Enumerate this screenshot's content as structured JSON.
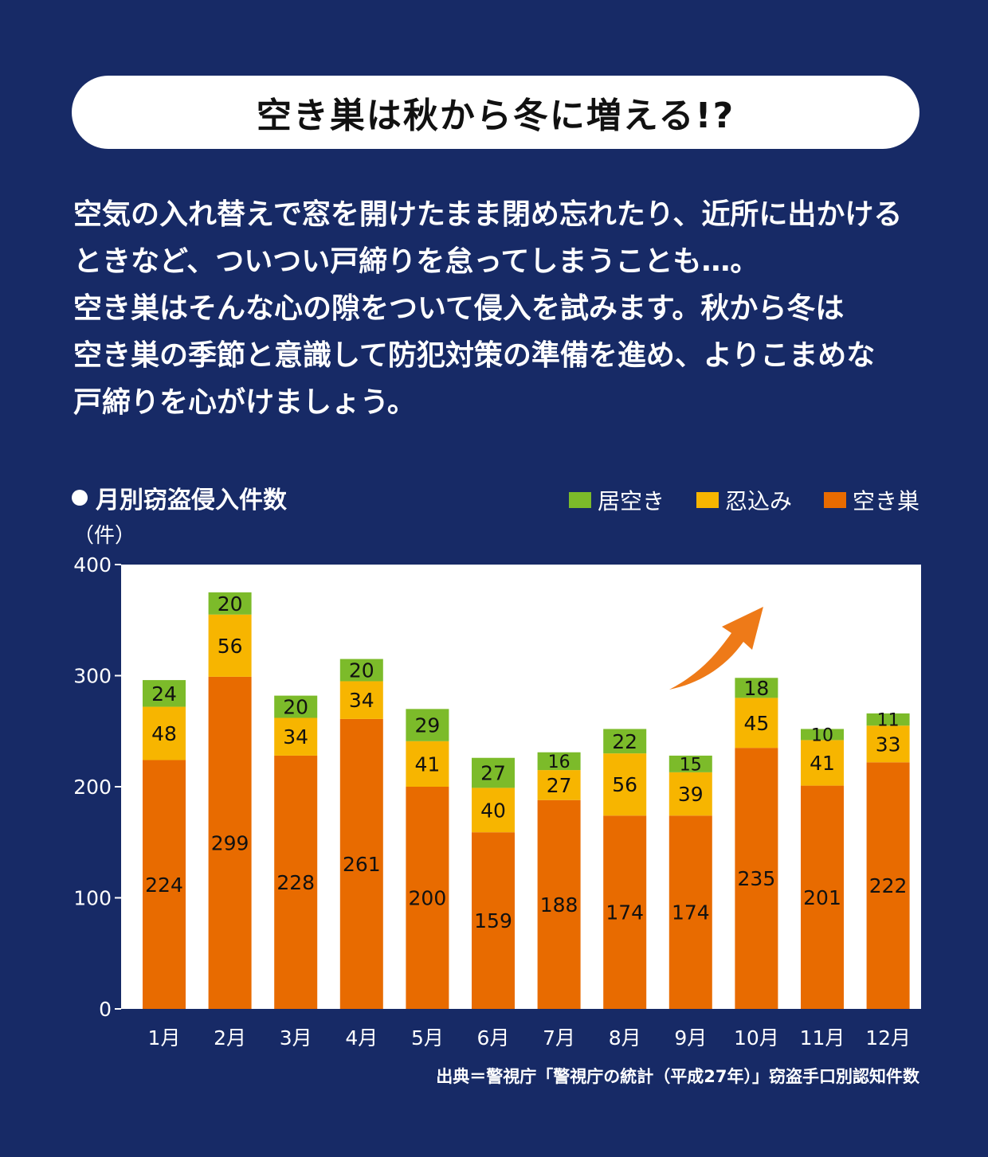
{
  "title": "空き巣は秋から冬に増える!?",
  "paragraph_lines": [
    "空気の入れ替えで窓を開けたまま閉め忘れたり、近所に出かける",
    "ときなど、ついつい戸締りを怠ってしまうことも…。",
    "空き巣はそんな心の隙をついて侵入を試みます。秋から冬は",
    "空き巣の季節と意識して防犯対策の準備を進め、よりこまめな",
    "戸締りを心がけましょう。"
  ],
  "chart_heading": "月別窃盗侵入件数",
  "unit_label": "（件）",
  "source": "出典＝警視庁「警視庁の統計（平成27年）」窃盗手口別認知件数",
  "colors": {
    "background": "#172a66",
    "plot_bg": "#ffffff",
    "akisu": "#e86b00",
    "shinobikomi": "#f7b500",
    "iaki": "#7cbb2a",
    "trend_arrow": "#ee7a18"
  },
  "icons": [
    "bullet-dot-icon",
    "trend-arrow-icon"
  ],
  "chart_data": {
    "type": "bar",
    "stacked": true,
    "categories": [
      "1月",
      "2月",
      "3月",
      "4月",
      "5月",
      "6月",
      "7月",
      "8月",
      "9月",
      "10月",
      "11月",
      "12月"
    ],
    "series": [
      {
        "name": "空き巣",
        "values": [
          224,
          299,
          228,
          261,
          200,
          159,
          188,
          174,
          174,
          235,
          201,
          222
        ],
        "color": "#e86b00"
      },
      {
        "name": "忍込み",
        "values": [
          48,
          56,
          34,
          34,
          41,
          40,
          27,
          56,
          39,
          45,
          41,
          33
        ],
        "color": "#f7b500"
      },
      {
        "name": "居空き",
        "values": [
          24,
          20,
          20,
          20,
          29,
          27,
          16,
          22,
          15,
          18,
          10,
          11
        ],
        "color": "#7cbb2a"
      }
    ],
    "legend_order": [
      "居空き",
      "忍込み",
      "空き巣"
    ],
    "legend_position": "top-right",
    "ylim": [
      0,
      400
    ],
    "yticks": [
      "0",
      "100",
      "200",
      "300",
      "400"
    ],
    "ylabel": "（件）",
    "grid": false
  }
}
